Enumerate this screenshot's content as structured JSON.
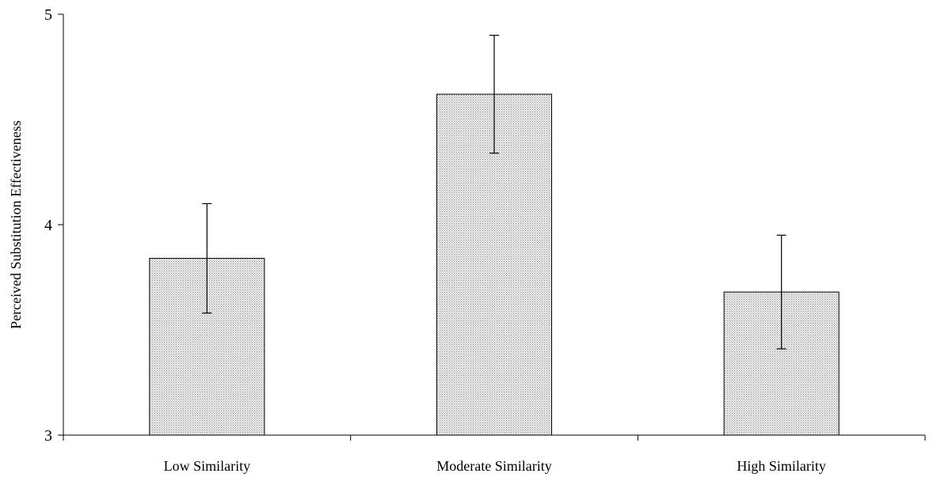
{
  "chart_data": {
    "type": "bar",
    "title": "",
    "xlabel": "",
    "ylabel": "Perceived Substitution Effectiveness",
    "categories": [
      "Low Similarity",
      "Moderate Similarity",
      "High Similarity"
    ],
    "values": [
      3.84,
      4.62,
      3.68
    ],
    "error_low": [
      3.58,
      4.34,
      3.41
    ],
    "error_high": [
      4.1,
      4.9,
      3.95
    ],
    "ylim": [
      3,
      5
    ],
    "yticks": [
      "3",
      "4",
      "5"
    ],
    "grid": false,
    "legend": "none",
    "bar_fill": "#d0d0d0",
    "bar_stroke": "#000000"
  }
}
